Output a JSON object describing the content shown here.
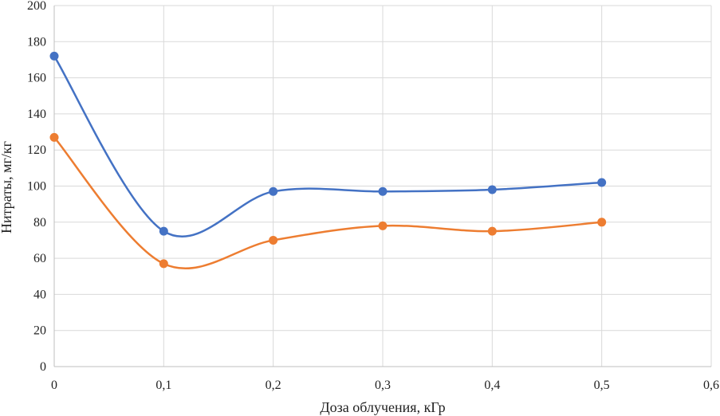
{
  "chart_data": {
    "type": "scatter",
    "title": "",
    "xlabel": "Доза облучения, кГр",
    "ylabel": "Нитраты, мг/кг",
    "xlim": [
      0,
      0.6
    ],
    "ylim": [
      0,
      200
    ],
    "x_ticks": [
      0,
      0.1,
      0.2,
      0.3,
      0.4,
      0.5,
      0.6
    ],
    "x_tick_labels": [
      "0",
      "0,1",
      "0,2",
      "0,3",
      "0,4",
      "0,5",
      "0,6"
    ],
    "y_ticks": [
      0,
      20,
      40,
      60,
      80,
      100,
      120,
      140,
      160,
      180,
      200
    ],
    "y_tick_labels": [
      "0",
      "20",
      "40",
      "60",
      "80",
      "100",
      "120",
      "140",
      "160",
      "180",
      "200"
    ],
    "grid": true,
    "legend": false,
    "smooth_lines": true,
    "series": [
      {
        "color": "#4472c4",
        "x": [
          0,
          0.1,
          0.2,
          0.3,
          0.4,
          0.5
        ],
        "y": [
          172,
          75,
          97,
          97,
          98,
          102
        ]
      },
      {
        "color": "#ed7d31",
        "x": [
          0,
          0.1,
          0.2,
          0.3,
          0.4,
          0.5
        ],
        "y": [
          127,
          57,
          70,
          78,
          75,
          80
        ]
      }
    ]
  }
}
